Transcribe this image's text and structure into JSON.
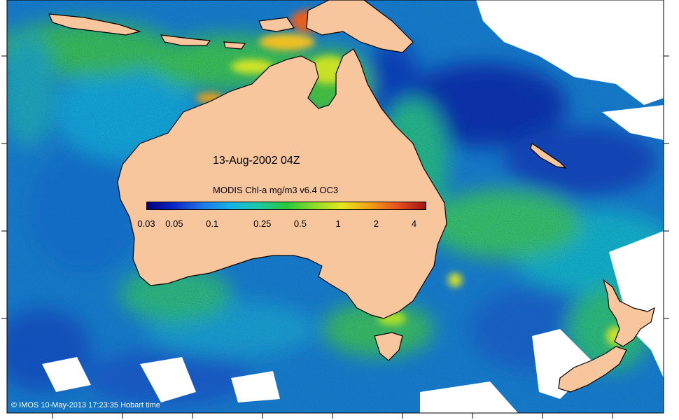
{
  "map": {
    "title": "13-Aug-2002 04Z",
    "credit": "© IMOS 10-May-2013 17:23:35 Hobart time",
    "colors": {
      "land": "#f7c69c",
      "no_data": "#ffffff",
      "ocean_base": "#1a7ccd"
    }
  },
  "legend": {
    "title": "MODIS Chl-a mg/m3 v6.4 OC3",
    "unit": "mg/m3",
    "ticks": [
      {
        "label": "0.03",
        "value": 0.03
      },
      {
        "label": "0.05",
        "value": 0.05
      },
      {
        "label": "0.1",
        "value": 0.1
      },
      {
        "label": "0.25",
        "value": 0.25
      },
      {
        "label": "0.5",
        "value": 0.5
      },
      {
        "label": "1",
        "value": 1
      },
      {
        "label": "2",
        "value": 2
      },
      {
        "label": "4",
        "value": 4
      }
    ],
    "range": [
      0.03,
      5
    ],
    "scale": "log",
    "color_stops": [
      "#00007a",
      "#0a28c8",
      "#1e78e6",
      "#14b4e6",
      "#1ec8a0",
      "#28c83c",
      "#8cdc28",
      "#e6e61e",
      "#f0a014",
      "#e6501e",
      "#a01414"
    ]
  },
  "features": {
    "land_masses": [
      "australia",
      "new-guinea",
      "new-zealand-north",
      "new-zealand-south",
      "tasmania",
      "indonesia",
      "new-caledonia"
    ]
  }
}
